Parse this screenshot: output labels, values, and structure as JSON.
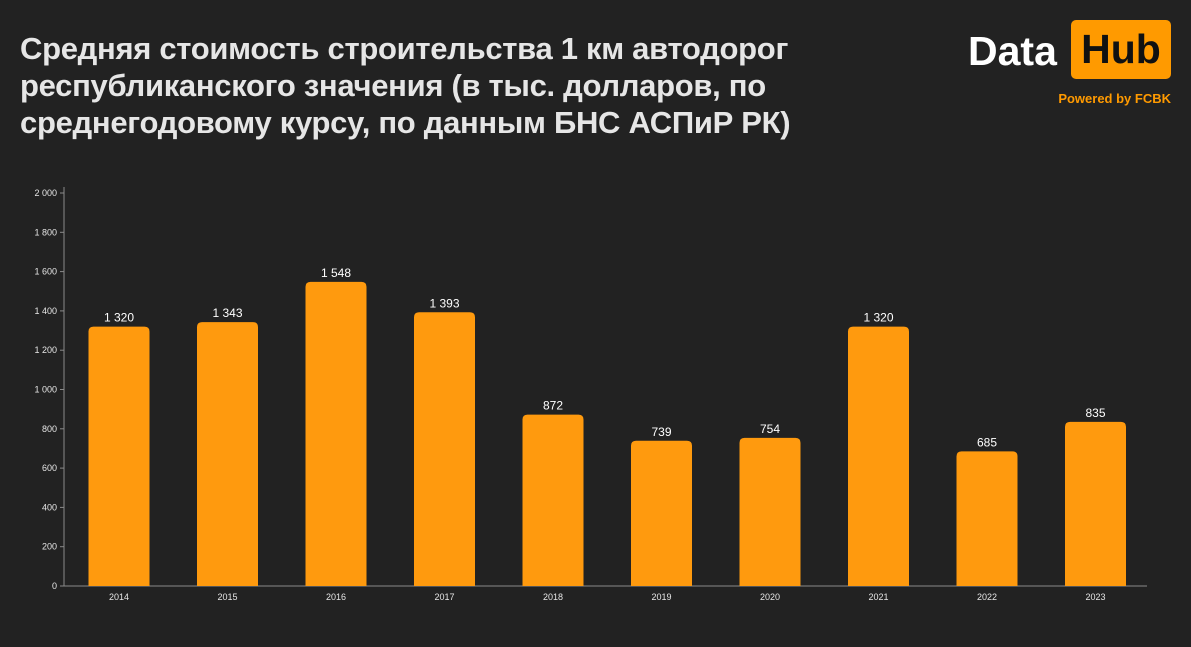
{
  "header": {
    "title": "Средняя стоимость строительства 1 км автодорог республиканского значения (в тыс. долларов, по среднегодовому курсу, по данным БНС АСПиР РК)"
  },
  "logo": {
    "data_text": "Data",
    "hub_text": "Hub",
    "powered_text": "Powered by FCBK"
  },
  "colors": {
    "background": "#222222",
    "bar": "#ff9a0e",
    "accent": "#ff9a00"
  },
  "chart_data": {
    "type": "bar",
    "title": "Средняя стоимость строительства 1 км автодорог республиканского значения (в тыс. долларов, по среднегодовому курсу, по данным БНС АСПиР РК)",
    "categories": [
      "2014",
      "2015",
      "2016",
      "2017",
      "2018",
      "2019",
      "2020",
      "2021",
      "2022",
      "2023"
    ],
    "values": [
      1320,
      1343,
      1548,
      1393,
      872,
      739,
      754,
      1320,
      685,
      835
    ],
    "data_labels": [
      "1 320",
      "1 343",
      "1 548",
      "1 393",
      "872",
      "739",
      "754",
      "1 320",
      "685",
      "835"
    ],
    "y_ticks": [
      0,
      200,
      400,
      600,
      800,
      1000,
      1200,
      1400,
      1600,
      1800,
      2000
    ],
    "y_tick_labels": [
      "0",
      "200",
      "400",
      "600",
      "800",
      "1 000",
      "1 200",
      "1 400",
      "1 600",
      "1 800",
      "2 000"
    ],
    "ylim": [
      0,
      2000
    ],
    "xlabel": "",
    "ylabel": "",
    "grid": false,
    "legend": "none"
  }
}
